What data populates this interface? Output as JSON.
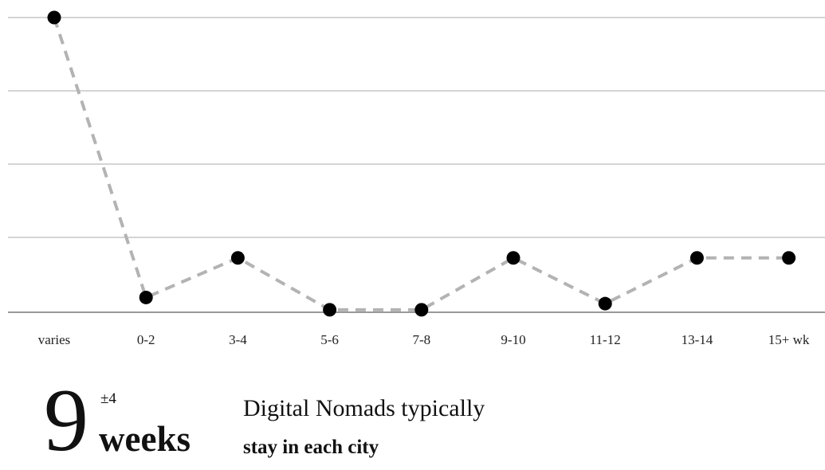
{
  "chart_data": {
    "type": "line",
    "categories": [
      "varies",
      "0-2",
      "3-4",
      "5-6",
      "7-8",
      "9-10",
      "11-12",
      "13-14",
      "15+ wk"
    ],
    "values": [
      100,
      4.5,
      18,
      0.3,
      0.3,
      18,
      2.4,
      18,
      18
    ],
    "ylim": [
      0,
      100
    ],
    "grid": true,
    "xlabel": "",
    "ylabel": "",
    "title": "",
    "line_style": "dashed",
    "line_color": "#b3b3b3",
    "marker_color": "#000000",
    "grid_color": "#aaaaaa"
  },
  "summary": {
    "number": "9",
    "plusminus": "±4",
    "unit": "weeks",
    "line1": "Digital Nomads typically",
    "line2": "stay in each city"
  }
}
